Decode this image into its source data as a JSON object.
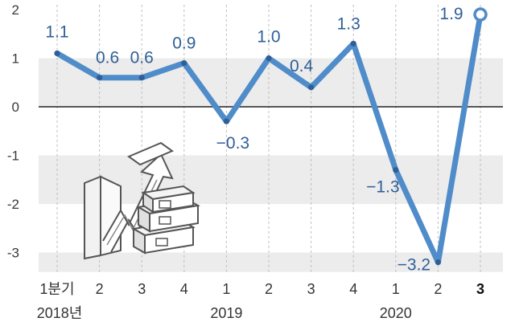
{
  "chart_data": {
    "type": "line",
    "x": [
      "1분기",
      "2",
      "3",
      "4",
      "1",
      "2",
      "3",
      "4",
      "1",
      "2",
      "3"
    ],
    "years": [
      {
        "label": "2018년",
        "index": 0
      },
      {
        "label": "2019",
        "index": 4
      },
      {
        "label": "2020",
        "index": 8
      }
    ],
    "values": [
      1.1,
      0.6,
      0.6,
      0.9,
      -0.3,
      1.0,
      0.4,
      1.3,
      -1.3,
      -3.2,
      1.9
    ],
    "value_labels": [
      "1.1",
      "0.6",
      "0.6",
      "0.9",
      "−0.3",
      "1.0",
      "0.4",
      "1.3",
      "−1.3",
      "−3.2",
      "1.9"
    ],
    "y_ticks": [
      2,
      1,
      0,
      -1,
      -2,
      -3
    ],
    "y_tick_labels": [
      "2",
      "1",
      "0",
      "-1",
      "-2",
      "-3"
    ],
    "ylim": [
      -3.4,
      2.2
    ],
    "highlight_last": true,
    "colors": {
      "line": "#4f8cc9",
      "label": "#2f5f98",
      "band": "#ececec",
      "zero": "#222222"
    }
  }
}
